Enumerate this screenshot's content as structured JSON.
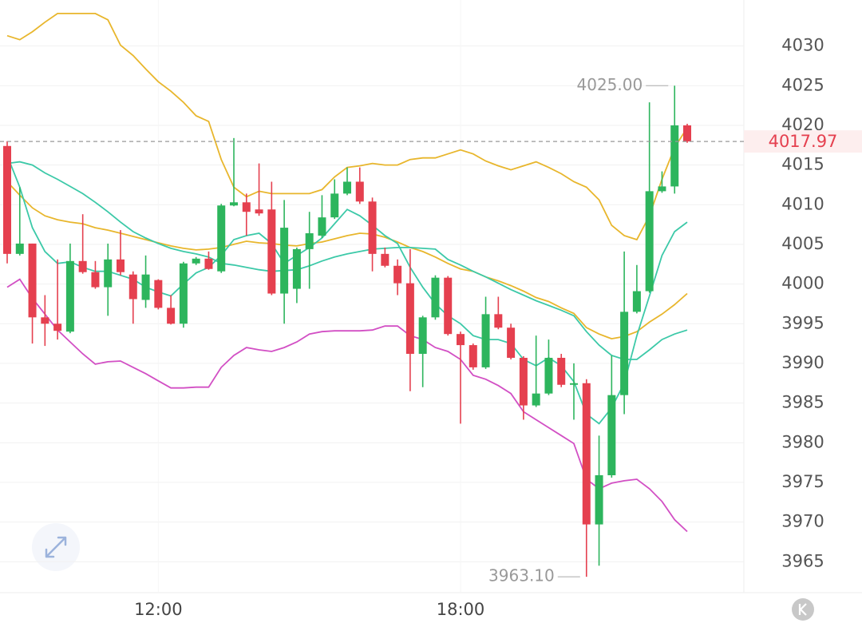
{
  "chart_data": {
    "type": "candlestick",
    "categories": [
      null,
      null,
      null,
      null,
      null,
      null,
      null,
      null,
      null,
      null,
      null,
      null,
      "12:00",
      null,
      null,
      null,
      null,
      null,
      null,
      null,
      null,
      null,
      null,
      null,
      null,
      null,
      null,
      null,
      null,
      null,
      null,
      null,
      null,
      null,
      null,
      null,
      "18:00",
      null,
      null,
      null,
      null,
      null,
      null,
      null,
      null,
      null,
      null,
      null,
      null,
      null,
      null,
      null,
      null,
      null,
      null
    ],
    "open": [
      4017.4,
      4003.8,
      4005.1,
      3995.8,
      3995.0,
      3994.0,
      4002.9,
      4001.5,
      3999.6,
      4003.1,
      4001.2,
      3998.0,
      4000.5,
      3997.0,
      3995.0,
      4002.6,
      4003.2,
      4001.6,
      4009.9,
      4010.3,
      4009.4,
      4009.4,
      3998.8,
      3999.4,
      4004.4,
      4006.1,
      4008.4,
      4011.4,
      4012.9,
      4010.4,
      4003.8,
      4002.3,
      4000.1,
      3991.2,
      3995.8,
      4000.8,
      3993.7,
      3992.3,
      3989.5,
      3996.2,
      3994.5,
      3990.7,
      3984.7,
      3986.2,
      3990.7,
      3987.3,
      3987.5,
      3969.7,
      3975.9,
      3986.0,
      3996.5,
      3999.1,
      4011.7,
      4012.3,
      4020.0
    ],
    "high": [
      4018.0,
      4012.2,
      4005.1,
      3998.6,
      4003.1,
      4005.1,
      4008.8,
      4002.9,
      4005.1,
      4006.8,
      4001.6,
      4003.6,
      4000.6,
      3998.6,
      4002.8,
      4003.4,
      4004.1,
      4010.1,
      4018.4,
      4011.4,
      4015.2,
      4012.9,
      4010.6,
      4004.6,
      4009.1,
      4011.2,
      4013.2,
      4014.7,
      4014.7,
      4010.9,
      4004.6,
      4003.1,
      4004.4,
      3996.0,
      4001.1,
      4001.0,
      3994.0,
      3992.5,
      3998.4,
      3998.4,
      3995.0,
      3990.9,
      3993.5,
      3993.0,
      3991.2,
      3990.0,
      3988.0,
      3980.9,
      3991.0,
      4004.1,
      4002.4,
      4022.9,
      4014.2,
      4025.0,
      4020.2
    ],
    "low": [
      4002.6,
      4003.6,
      3992.5,
      3992.2,
      3993.0,
      3993.8,
      4001.3,
      3999.4,
      3996.0,
      4001.1,
      3995.0,
      3997.0,
      3996.8,
      3994.9,
      3994.5,
      4002.4,
      4001.8,
      4001.4,
      4009.8,
      4006.1,
      4008.6,
      3998.6,
      3995.0,
      3997.6,
      3999.4,
      4005.8,
      4008.2,
      4011.2,
      4010.1,
      4001.6,
      4002.1,
      3998.6,
      3986.5,
      3987.0,
      3995.5,
      3993.5,
      3982.4,
      3989.2,
      3989.3,
      3994.3,
      3990.5,
      3982.9,
      3984.5,
      3986.0,
      3987.0,
      3982.9,
      3963.1,
      3964.5,
      3975.6,
      3983.6,
      3996.3,
      3998.9,
      4011.5,
      4011.4,
      4017.8
    ],
    "close": [
      4003.8,
      4005.1,
      3995.8,
      3995.0,
      3994.1,
      4002.9,
      4001.5,
      3999.6,
      4003.1,
      4001.5,
      3998.1,
      4001.2,
      3997.0,
      3995.0,
      4002.6,
      4003.2,
      4001.9,
      4009.9,
      4010.3,
      4009.1,
      4008.9,
      3998.8,
      4007.1,
      4004.4,
      4006.4,
      4008.4,
      4011.4,
      4012.9,
      4010.4,
      4003.8,
      4002.3,
      4000.1,
      3991.2,
      3995.8,
      4000.8,
      3993.7,
      3992.3,
      3989.5,
      3996.2,
      3994.5,
      3990.7,
      3984.7,
      3986.2,
      3990.7,
      3987.3,
      3987.5,
      3969.7,
      3975.9,
      3986.0,
      3996.5,
      3999.1,
      4011.7,
      4012.3,
      4020.0,
      4017.97
    ],
    "up_color": "#2db55d",
    "down_color": "#e5404f",
    "series": [
      {
        "color": "#e8b62c",
        "values": [
          4031.3,
          4030.8,
          4031.8,
          4033.0,
          4034.1,
          4034.1,
          4034.1,
          4034.1,
          4033.3,
          4030.1,
          4028.8,
          4027.1,
          4025.5,
          4024.3,
          4022.9,
          4021.2,
          4020.5,
          4015.7,
          4012.2,
          4011.0,
          4011.7,
          4011.4,
          4011.4,
          4011.4,
          4011.4,
          4011.9,
          4013.5,
          4014.7,
          4014.9,
          4015.2,
          4015.0,
          4015.0,
          4015.7,
          4015.9,
          4015.9,
          4016.4,
          4016.9,
          4016.4,
          4015.5,
          4014.9,
          4014.4,
          4014.9,
          4015.4,
          4014.7,
          4013.9,
          4012.9,
          4012.2,
          4010.6,
          4007.4,
          4006.1,
          4005.6,
          4008.6,
          4013.2,
          4017.2,
          4019.7
        ]
      },
      {
        "color": "#e8b62c",
        "values": [
          4012.9,
          4011.2,
          4009.6,
          4008.6,
          4008.1,
          4007.8,
          4007.6,
          4007.1,
          4006.8,
          4006.4,
          4006.0,
          4005.6,
          4005.2,
          4004.8,
          4004.5,
          4004.3,
          4004.4,
          4004.6,
          4005.0,
          4005.4,
          4005.2,
          4005.1,
          4004.9,
          4004.8,
          4005.1,
          4005.3,
          4005.7,
          4006.1,
          4006.4,
          4006.3,
          4005.9,
          4005.3,
          4004.6,
          4004.1,
          4003.4,
          4002.6,
          4001.9,
          4001.6,
          4000.9,
          4000.4,
          3999.8,
          3999.1,
          3998.3,
          3997.8,
          3997.0,
          3996.3,
          3994.5,
          3993.7,
          3993.1,
          3993.4,
          3994.0,
          3995.2,
          3996.2,
          3997.4,
          3998.8
        ]
      },
      {
        "color": "#d24fc4",
        "values": [
          3999.6,
          4000.6,
          3998.2,
          3996.2,
          3994.2,
          3992.7,
          3991.2,
          3989.9,
          3990.2,
          3990.3,
          3989.5,
          3988.7,
          3987.8,
          3986.9,
          3986.9,
          3987.0,
          3987.0,
          3989.5,
          3991.0,
          3992.0,
          3991.7,
          3991.5,
          3992.0,
          3992.7,
          3993.7,
          3994.0,
          3994.1,
          3994.1,
          3994.1,
          3994.2,
          3994.7,
          3994.7,
          3993.5,
          3993.0,
          3992.0,
          3991.5,
          3990.5,
          3988.5,
          3988.0,
          3987.2,
          3986.2,
          3983.9,
          3982.9,
          3981.9,
          3980.9,
          3979.9,
          3975.4,
          3974.2,
          3974.9,
          3975.2,
          3975.4,
          3974.2,
          3972.6,
          3970.3,
          3968.8
        ]
      },
      {
        "color": "#3cc9a8",
        "values": [
          4015.2,
          4015.4,
          4015.0,
          4014.0,
          4013.2,
          4012.3,
          4011.4,
          4010.3,
          4009.1,
          4007.8,
          4006.6,
          4005.8,
          4005.1,
          4004.5,
          4004.1,
          4003.8,
          4003.4,
          4002.6,
          4002.4,
          4002.1,
          4001.8,
          4001.6,
          4001.7,
          4001.8,
          4002.3,
          4002.9,
          4003.4,
          4003.8,
          4004.1,
          4004.4,
          4004.5,
          4004.6,
          4004.6,
          4004.5,
          4004.4,
          4003.1,
          4002.4,
          4001.6,
          4000.9,
          4000.1,
          3999.3,
          3998.6,
          3997.9,
          3997.3,
          3996.7,
          3996.0,
          3994.0,
          3992.3,
          3991.0,
          3990.5,
          3990.5,
          3991.7,
          3993.0,
          3993.7,
          3994.2
        ]
      },
      {
        "color": "#3cc9a8",
        "values": [
          4016.2,
          4012.2,
          4007.1,
          4004.1,
          4002.6,
          4002.8,
          4002.1,
          4001.6,
          4001.6,
          4001.1,
          4000.6,
          3999.6,
          3999.0,
          3998.5,
          4000.0,
          4001.4,
          4002.1,
          4003.6,
          4005.6,
          4006.1,
          4006.4,
          4005.1,
          4002.6,
          4003.6,
          4004.6,
          4005.8,
          4007.6,
          4009.4,
          4008.6,
          4007.4,
          4006.1,
          4005.1,
          4002.1,
          3999.6,
          3997.5,
          3996.0,
          3995.0,
          3993.5,
          3993.0,
          3993.0,
          3992.5,
          3990.5,
          3989.7,
          3990.7,
          3989.7,
          3987.7,
          3983.6,
          3982.4,
          3984.4,
          3987.5,
          3993.5,
          3998.5,
          4003.6,
          4006.6,
          4007.8
        ]
      }
    ],
    "ylim": [
      3961.1,
      4035.8
    ],
    "yticks": [
      3965,
      3970,
      3975,
      3980,
      3985,
      3990,
      3995,
      4000,
      4005,
      4010,
      4015,
      4020,
      4025,
      4030
    ],
    "grid": true,
    "last_price": 4017.97,
    "max_label": {
      "value": 4025,
      "label": "4025.00"
    },
    "min_label": {
      "value": 3963.1,
      "label": "3963.10"
    }
  }
}
